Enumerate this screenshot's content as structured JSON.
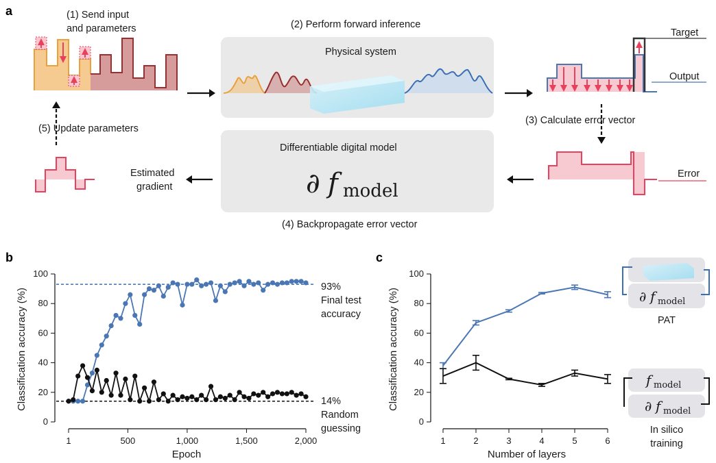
{
  "panel_a": {
    "letter": "a",
    "step1_line1": "(1) Send input",
    "step1_line2": "and parameters",
    "step2": "(2) Perform forward inference",
    "physical_system": "Physical system",
    "target": "Target",
    "output": "Output",
    "step3": "(3) Calculate error vector",
    "error": "Error",
    "differentiable_model": "Differentiable digital model",
    "partial": "∂",
    "f": "f",
    "model_sub": "model",
    "estimated_line1": "Estimated",
    "estimated_line2": "gradient",
    "step4": "(4) Backpropagate error vector",
    "step5": "(5) Update parameters",
    "colors": {
      "input_orange": "#f3c27e",
      "param_red": "#c77b7b",
      "output_blue": "#4a77b4",
      "error_red": "#e8415d",
      "box_gray": "#e9e9e9"
    }
  },
  "panel_b": {
    "letter": "b",
    "ylabel": "Classification accuracy (%)",
    "xlabel": "Epoch",
    "xticks": [
      "1",
      "500",
      "1,000",
      "1,500",
      "2,000"
    ],
    "yticks": [
      "0",
      "20",
      "40",
      "60",
      "80",
      "100"
    ],
    "ann_93": "93%",
    "ann_final_1": "Final test",
    "ann_final_2": "accuracy",
    "ann_14": "14%",
    "ann_random_1": "Random",
    "ann_random_2": "guessing"
  },
  "panel_c": {
    "letter": "c",
    "ylabel": "Classification accuracy (%)",
    "xlabel": "Number of layers",
    "xticks": [
      "1",
      "2",
      "3",
      "4",
      "5",
      "6"
    ],
    "yticks": [
      "0",
      "20",
      "40",
      "60",
      "80",
      "100"
    ],
    "pat_label": "PAT",
    "insilico_1": "In silico",
    "insilico_2": "training"
  },
  "chart_data": [
    {
      "type": "line",
      "panel": "b",
      "xlabel": "Epoch",
      "ylabel": "Classification accuracy (%)",
      "xlim": [
        1,
        2000
      ],
      "ylim": [
        0,
        100
      ],
      "reference_lines": [
        {
          "y": 93,
          "label": "93% Final test accuracy",
          "style": "dashed",
          "color": "#3a6fb5"
        },
        {
          "y": 14,
          "label": "14% Random guessing",
          "style": "dashed",
          "color": "#111111"
        }
      ],
      "series": [
        {
          "color": "#4a77b4",
          "x": [
            1,
            40,
            80,
            120,
            160,
            200,
            240,
            280,
            320,
            360,
            400,
            440,
            480,
            520,
            560,
            600,
            640,
            680,
            720,
            760,
            800,
            840,
            880,
            920,
            960,
            1000,
            1040,
            1080,
            1120,
            1160,
            1200,
            1240,
            1280,
            1320,
            1360,
            1400,
            1440,
            1480,
            1520,
            1560,
            1600,
            1640,
            1680,
            1720,
            1760,
            1800,
            1840,
            1880,
            1920,
            1960,
            2000
          ],
          "values": [
            14,
            14,
            14,
            14,
            25,
            33,
            45,
            52,
            58,
            65,
            72,
            70,
            80,
            86,
            72,
            66,
            86,
            90,
            89,
            92,
            85,
            91,
            94,
            93,
            79,
            93,
            93,
            96,
            92,
            93,
            94,
            82,
            92,
            88,
            93,
            94,
            95,
            92,
            95,
            93,
            94,
            89,
            93,
            94,
            93,
            94,
            94,
            95,
            95,
            95,
            94
          ]
        },
        {
          "color": "#111111",
          "x": [
            1,
            40,
            80,
            120,
            160,
            200,
            240,
            280,
            320,
            360,
            400,
            440,
            480,
            520,
            560,
            600,
            640,
            680,
            720,
            760,
            800,
            840,
            880,
            920,
            960,
            1000,
            1040,
            1080,
            1120,
            1160,
            1200,
            1240,
            1280,
            1320,
            1360,
            1400,
            1440,
            1480,
            1520,
            1560,
            1600,
            1640,
            1680,
            1720,
            1760,
            1800,
            1840,
            1880,
            1920,
            1960,
            2000
          ],
          "values": [
            14,
            15,
            31,
            38,
            30,
            21,
            35,
            20,
            28,
            18,
            33,
            18,
            29,
            15,
            31,
            14,
            23,
            14,
            27,
            15,
            19,
            14,
            18,
            15,
            17,
            16,
            17,
            15,
            18,
            15,
            24,
            15,
            17,
            16,
            18,
            15,
            20,
            17,
            16,
            19,
            18,
            20,
            17,
            19,
            20,
            19,
            19,
            20,
            18,
            19,
            17
          ]
        }
      ]
    },
    {
      "type": "line",
      "panel": "c",
      "xlabel": "Number of layers",
      "ylabel": "Classification accuracy (%)",
      "xlim": [
        1,
        6
      ],
      "ylim": [
        0,
        100
      ],
      "series": [
        {
          "color": "#4a77b4",
          "x": [
            1,
            2,
            3,
            4,
            5,
            6
          ],
          "values": [
            38,
            67,
            75,
            87,
            91,
            86
          ],
          "errors": [
            2,
            1.5,
            0.8,
            0.5,
            1.5,
            2
          ]
        },
        {
          "color": "#111111",
          "x": [
            1,
            2,
            3,
            4,
            5,
            6
          ],
          "values": [
            31,
            40,
            29,
            25,
            33,
            29
          ],
          "errors": [
            5,
            5,
            0.5,
            1,
            2,
            3
          ]
        }
      ]
    }
  ]
}
